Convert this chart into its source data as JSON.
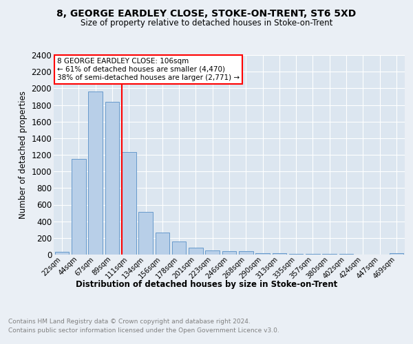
{
  "title": "8, GEORGE EARDLEY CLOSE, STOKE-ON-TRENT, ST6 5XD",
  "subtitle": "Size of property relative to detached houses in Stoke-on-Trent",
  "xlabel": "Distribution of detached houses by size in Stoke-on-Trent",
  "ylabel": "Number of detached properties",
  "footnote1": "Contains HM Land Registry data © Crown copyright and database right 2024.",
  "footnote2": "Contains public sector information licensed under the Open Government Licence v3.0.",
  "categories": [
    "22sqm",
    "44sqm",
    "67sqm",
    "89sqm",
    "111sqm",
    "134sqm",
    "156sqm",
    "178sqm",
    "201sqm",
    "223sqm",
    "246sqm",
    "268sqm",
    "290sqm",
    "313sqm",
    "335sqm",
    "357sqm",
    "380sqm",
    "402sqm",
    "424sqm",
    "447sqm",
    "469sqm"
  ],
  "values": [
    30,
    1150,
    1960,
    1840,
    1230,
    510,
    265,
    155,
    85,
    48,
    38,
    38,
    20,
    15,
    10,
    8,
    6,
    5,
    4,
    4,
    20
  ],
  "bar_color": "#b8cfe8",
  "bar_edge_color": "#6699cc",
  "vline_color": "red",
  "vline_index": 4,
  "annotation_text": "8 GEORGE EARDLEY CLOSE: 106sqm\n← 61% of detached houses are smaller (4,470)\n38% of semi-detached houses are larger (2,771) →",
  "ylim": [
    0,
    2400
  ],
  "yticks": [
    0,
    200,
    400,
    600,
    800,
    1000,
    1200,
    1400,
    1600,
    1800,
    2000,
    2200,
    2400
  ],
  "background_color": "#eaeff5",
  "plot_bg_color": "#dce6f0"
}
